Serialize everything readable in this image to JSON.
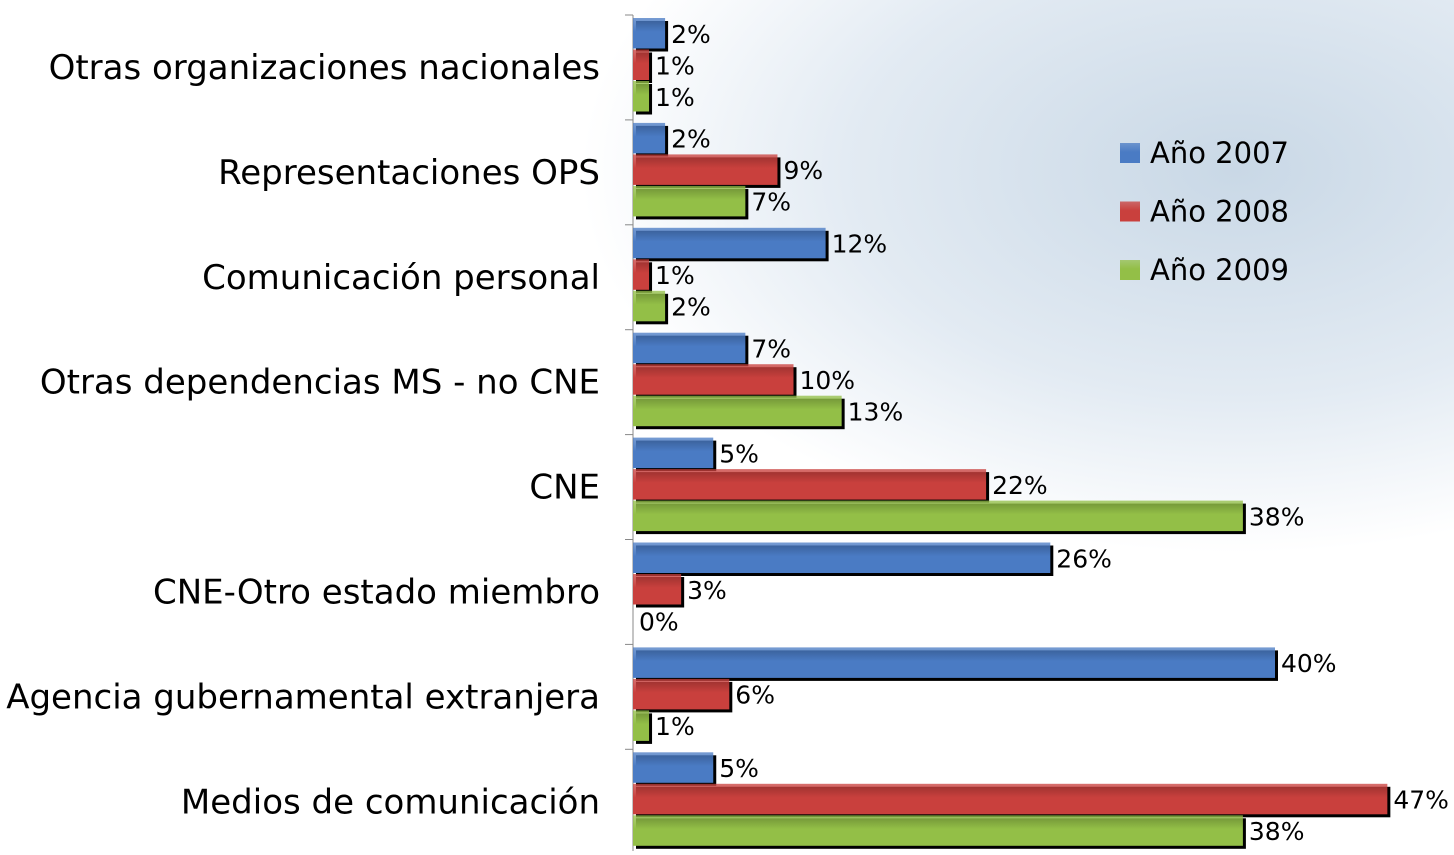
{
  "chart_data": {
    "type": "barh",
    "categories": [
      "Otras organizaciones nacionales",
      "Representaciones OPS",
      "Comunicación personal",
      "Otras dependencias MS - no CNE",
      "CNE",
      "CNE-Otro estado miembro",
      "Agencia gubernamental extranjera",
      "Medios de comunicación"
    ],
    "series": [
      {
        "name": "Año 2007",
        "color": "#4a7bc4",
        "values": [
          2,
          2,
          12,
          7,
          5,
          26,
          40,
          5
        ],
        "value_labels": [
          "2%",
          "2%",
          "12%",
          "7%",
          "5%",
          "26%",
          "40%",
          "5%"
        ]
      },
      {
        "name": "Año 2008",
        "color": "#c9403d",
        "values": [
          1,
          9,
          1,
          10,
          22,
          3,
          6,
          47
        ],
        "value_labels": [
          "1%",
          "9%",
          "1%",
          "10%",
          "22%",
          "3%",
          "6%",
          "47%"
        ]
      },
      {
        "name": "Año 2009",
        "color": "#93bf47",
        "values": [
          1,
          7,
          2,
          13,
          38,
          0,
          1,
          38
        ],
        "value_labels": [
          "1%",
          "7%",
          "2%",
          "13%",
          "38%",
          "0%",
          "1%",
          "38%"
        ]
      }
    ],
    "xlim": [
      0,
      50
    ],
    "legend": "right"
  }
}
